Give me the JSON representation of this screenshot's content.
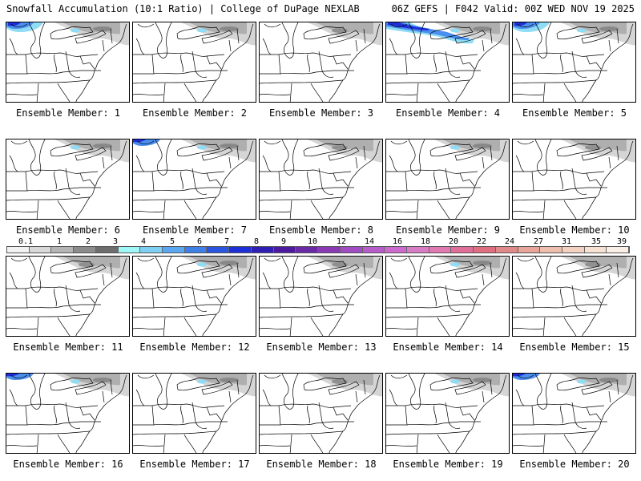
{
  "header": {
    "left_title": "Snowfall Accumulation (10:1 Ratio) | College of DuPage NEXLAB",
    "right_title": "06Z GEFS | F042 Valid: 00Z WED NOV 19 2025"
  },
  "members": [
    {
      "label": "Ensemble Member: 1",
      "snow": "heavy-nw"
    },
    {
      "label": "Ensemble Member: 2",
      "snow": "light"
    },
    {
      "label": "Ensemble Member: 3",
      "snow": "trace"
    },
    {
      "label": "Ensemble Member: 4",
      "snow": "heavy-band"
    },
    {
      "label": "Ensemble Member: 5",
      "snow": "heavy-nw"
    },
    {
      "label": "Ensemble Member: 6",
      "snow": "light"
    },
    {
      "label": "Ensemble Member: 7",
      "snow": "moderate-nw"
    },
    {
      "label": "Ensemble Member: 8",
      "snow": "trace"
    },
    {
      "label": "Ensemble Member: 9",
      "snow": "light"
    },
    {
      "label": "Ensemble Member: 10",
      "snow": "trace"
    },
    {
      "label": "Ensemble Member: 11",
      "snow": "trace"
    },
    {
      "label": "Ensemble Member: 12",
      "snow": "light"
    },
    {
      "label": "Ensemble Member: 13",
      "snow": "trace"
    },
    {
      "label": "Ensemble Member: 14",
      "snow": "light"
    },
    {
      "label": "Ensemble Member: 15",
      "snow": "trace"
    },
    {
      "label": "Ensemble Member: 16",
      "snow": "moderate-nw"
    },
    {
      "label": "Ensemble Member: 17",
      "snow": "light"
    },
    {
      "label": "Ensemble Member: 18",
      "snow": "trace"
    },
    {
      "label": "Ensemble Member: 19",
      "snow": "light"
    },
    {
      "label": "Ensemble Member: 20",
      "snow": "moderate-nw"
    }
  ],
  "colorbar": {
    "ticks": [
      "0.1",
      "1",
      "2",
      "3",
      "4",
      "5",
      "6",
      "7",
      "8",
      "9",
      "10",
      "12",
      "14",
      "16",
      "18",
      "20",
      "22",
      "24",
      "27",
      "31",
      "35",
      "39"
    ],
    "colors": [
      "#f2f2f2",
      "#d9d9d9",
      "#b5b5b5",
      "#8c8c8c",
      "#6e6e6e",
      "#9ff7f7",
      "#7fd0f5",
      "#5aa8f2",
      "#3f7fe8",
      "#2a55e0",
      "#1f2fd8",
      "#2f1fb5",
      "#4b1a9e",
      "#6a2aa8",
      "#8a3ab5",
      "#a04cc2",
      "#b85cc9",
      "#cc6acd",
      "#d87cc5",
      "#e07ab0",
      "#e06e98",
      "#de6e80",
      "#e08a8a",
      "#e8a59a",
      "#efbfae",
      "#f4d2c2",
      "#f8e2d4",
      "#fbeee4"
    ]
  },
  "colors": {
    "border": "#000000",
    "gray_light": "#d0d0d0",
    "gray_mid": "#a8a8a8",
    "blue_light": "#8fdcf5",
    "blue": "#4a8ef0",
    "blue_dark": "#1f2fd8"
  }
}
